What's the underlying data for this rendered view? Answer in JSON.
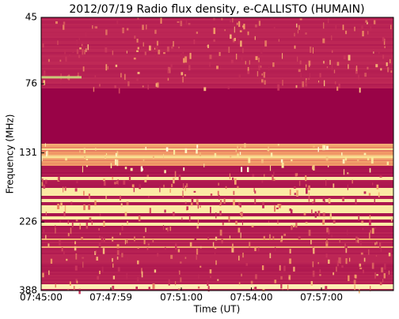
{
  "chart_data": {
    "type": "spectrogram",
    "title": "2012/07/19  Radio flux density, e-CALLISTO (HUMAIN)",
    "xlabel": "Time (UT)",
    "ylabel": "Frequency (MHz)",
    "xlim": [
      "07:45:00",
      "08:00:05"
    ],
    "xticks": [
      "07:45:00",
      "07:47:59",
      "07:51:00",
      "07:54:00",
      "07:57:00"
    ],
    "yscale": "log",
    "ylim": [
      388,
      45
    ],
    "yticks": [
      45,
      76,
      131,
      226,
      388
    ]
  }
}
